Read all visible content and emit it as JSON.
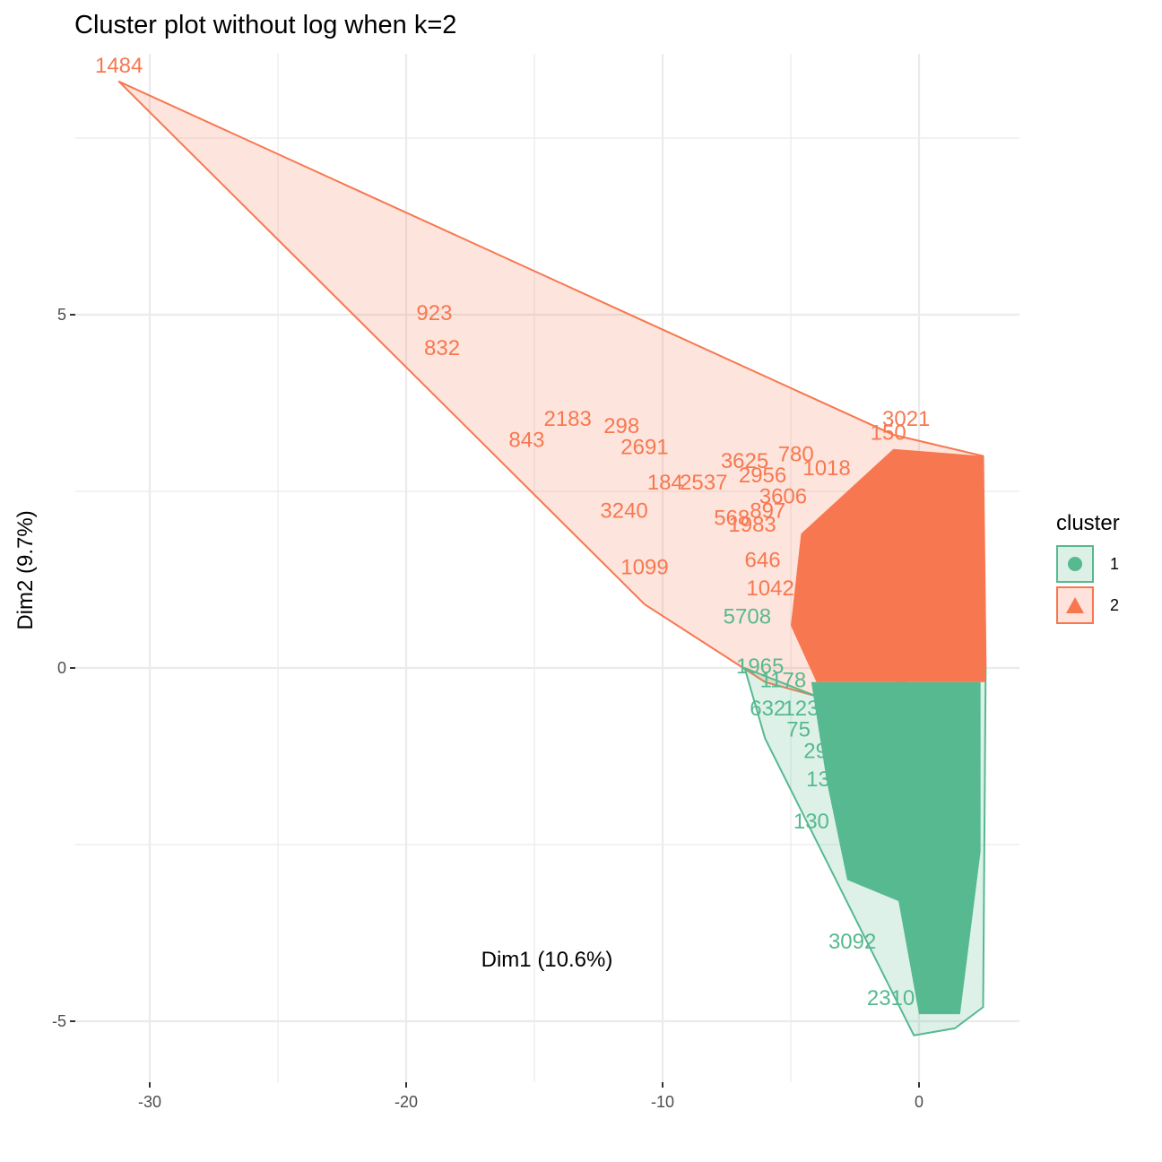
{
  "chart_data": {
    "type": "scatter",
    "title": "Cluster plot without log when k=2",
    "xlabel": "Dim1 (10.6%)",
    "ylabel": "Dim2 (9.7%)",
    "xlim": [
      -33,
      4
    ],
    "ylim": [
      -5.8,
      9.3
    ],
    "x_ticks": [
      -30,
      -20,
      -10,
      0
    ],
    "x_tick_labels": [
      "-30",
      "-20",
      "-10",
      "0"
    ],
    "y_ticks": [
      -5,
      0,
      5
    ],
    "y_tick_labels": [
      "-5",
      "0",
      "5"
    ],
    "x_minor_gridlines": [
      -25,
      -15,
      -5
    ],
    "y_minor_gridlines": [
      -2.5,
      2.5,
      7.5
    ],
    "grid": true,
    "legend": {
      "title": "cluster",
      "placement": "right",
      "entries": [
        {
          "label": "1",
          "shape": "circle",
          "color": "#56B98F",
          "fill": "#DDF0E8"
        },
        {
          "label": "2",
          "shape": "triangle",
          "color": "#F77850",
          "fill": "#FEE2DB"
        }
      ]
    },
    "series": [
      {
        "name": "2",
        "color": "#F77850",
        "hull": [
          [
            -31.2,
            8.3
          ],
          [
            -1.0,
            3.3
          ],
          [
            2.5,
            3.0
          ],
          [
            2.6,
            0.0
          ],
          [
            -4.0,
            -0.4
          ],
          [
            -6.0,
            -0.2
          ],
          [
            -10.7,
            0.9
          ]
        ],
        "labeled_points": [
          {
            "label": "1484",
            "x": -31.2,
            "y": 8.3
          },
          {
            "label": "923",
            "x": -18.9,
            "y": 4.8
          },
          {
            "label": "832",
            "x": -18.6,
            "y": 4.3
          },
          {
            "label": "2183",
            "x": -13.7,
            "y": 3.3
          },
          {
            "label": "298",
            "x": -11.6,
            "y": 3.2
          },
          {
            "label": "843",
            "x": -15.3,
            "y": 3.0
          },
          {
            "label": "2691",
            "x": -10.7,
            "y": 2.9
          },
          {
            "label": "3625",
            "x": -6.8,
            "y": 2.7
          },
          {
            "label": "780",
            "x": -4.8,
            "y": 2.8
          },
          {
            "label": "150",
            "x": -1.2,
            "y": 3.1
          },
          {
            "label": "3021",
            "x": -0.5,
            "y": 3.3
          },
          {
            "label": "184",
            "x": -9.9,
            "y": 2.4
          },
          {
            "label": "2537",
            "x": -8.4,
            "y": 2.4
          },
          {
            "label": "2956",
            "x": -6.1,
            "y": 2.5
          },
          {
            "label": "1018",
            "x": -3.6,
            "y": 2.6
          },
          {
            "label": "3606",
            "x": -5.3,
            "y": 2.2
          },
          {
            "label": "3240",
            "x": -11.5,
            "y": 2.0
          },
          {
            "label": "568",
            "x": -7.3,
            "y": 1.9
          },
          {
            "label": "1983",
            "x": -6.5,
            "y": 1.8
          },
          {
            "label": "897",
            "x": -5.9,
            "y": 2.0
          },
          {
            "label": "646",
            "x": -6.1,
            "y": 1.3
          },
          {
            "label": "1099",
            "x": -10.7,
            "y": 1.2
          },
          {
            "label": "1042",
            "x": -5.8,
            "y": 0.9
          }
        ],
        "n_points_dense": "many (unlabeled overlap, roughly x -5..2.6, y -0.5..3.2)"
      },
      {
        "name": "1",
        "color": "#56B98F",
        "hull": [
          [
            -6.8,
            0.0
          ],
          [
            -4.0,
            -0.4
          ],
          [
            2.6,
            0.0
          ],
          [
            2.5,
            -4.8
          ],
          [
            1.4,
            -5.1
          ],
          [
            -0.2,
            -5.2
          ],
          [
            -6.0,
            -1.0
          ]
        ],
        "labeled_points": [
          {
            "label": "5708",
            "x": -6.7,
            "y": 0.5
          },
          {
            "label": "1965",
            "x": -6.2,
            "y": -0.2
          },
          {
            "label": "1178",
            "x": -5.3,
            "y": -0.4
          },
          {
            "label": "632",
            "x": -5.9,
            "y": -0.8
          },
          {
            "label": "123",
            "x": -4.6,
            "y": -0.8
          },
          {
            "label": "75",
            "x": -4.7,
            "y": -1.1
          },
          {
            "label": "292",
            "x": -3.8,
            "y": -1.4
          },
          {
            "label": "132",
            "x": -3.7,
            "y": -1.8
          },
          {
            "label": "130",
            "x": -4.2,
            "y": -2.4
          },
          {
            "label": "3092",
            "x": -2.6,
            "y": -4.1
          },
          {
            "label": "2310",
            "x": -1.1,
            "y": -4.9
          }
        ],
        "n_points_dense": "many (unlabeled overlap, roughly x -4..2.6, y -5..0.2)"
      }
    ]
  }
}
